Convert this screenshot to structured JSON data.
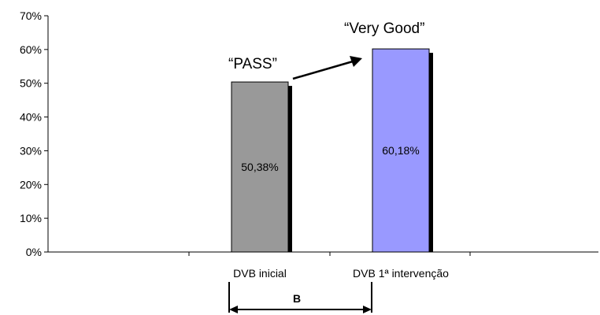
{
  "chart_data": {
    "type": "bar",
    "categories": [
      "DVB inicial",
      "DVB 1ª intervenção"
    ],
    "values": [
      50.38,
      60.18
    ],
    "value_labels": [
      "50,38%",
      "60,18%"
    ],
    "ylim": [
      0,
      70
    ],
    "yticks": [
      "0%",
      "10%",
      "20%",
      "30%",
      "40%",
      "50%",
      "60%",
      "70%"
    ],
    "grid": false,
    "legend": "none",
    "colors": {
      "bars": [
        "#999999",
        "#9999ff"
      ],
      "shadow": "#000000",
      "axis": "#000000"
    },
    "annotations": [
      {
        "text": "“PASS”",
        "target": "DVB inicial"
      },
      {
        "text": "“Very Good”",
        "target": "DVB 1ª intervenção"
      }
    ],
    "bracket": {
      "label": "B",
      "from": "DVB inicial",
      "to": "DVB 1ª intervenção"
    }
  }
}
